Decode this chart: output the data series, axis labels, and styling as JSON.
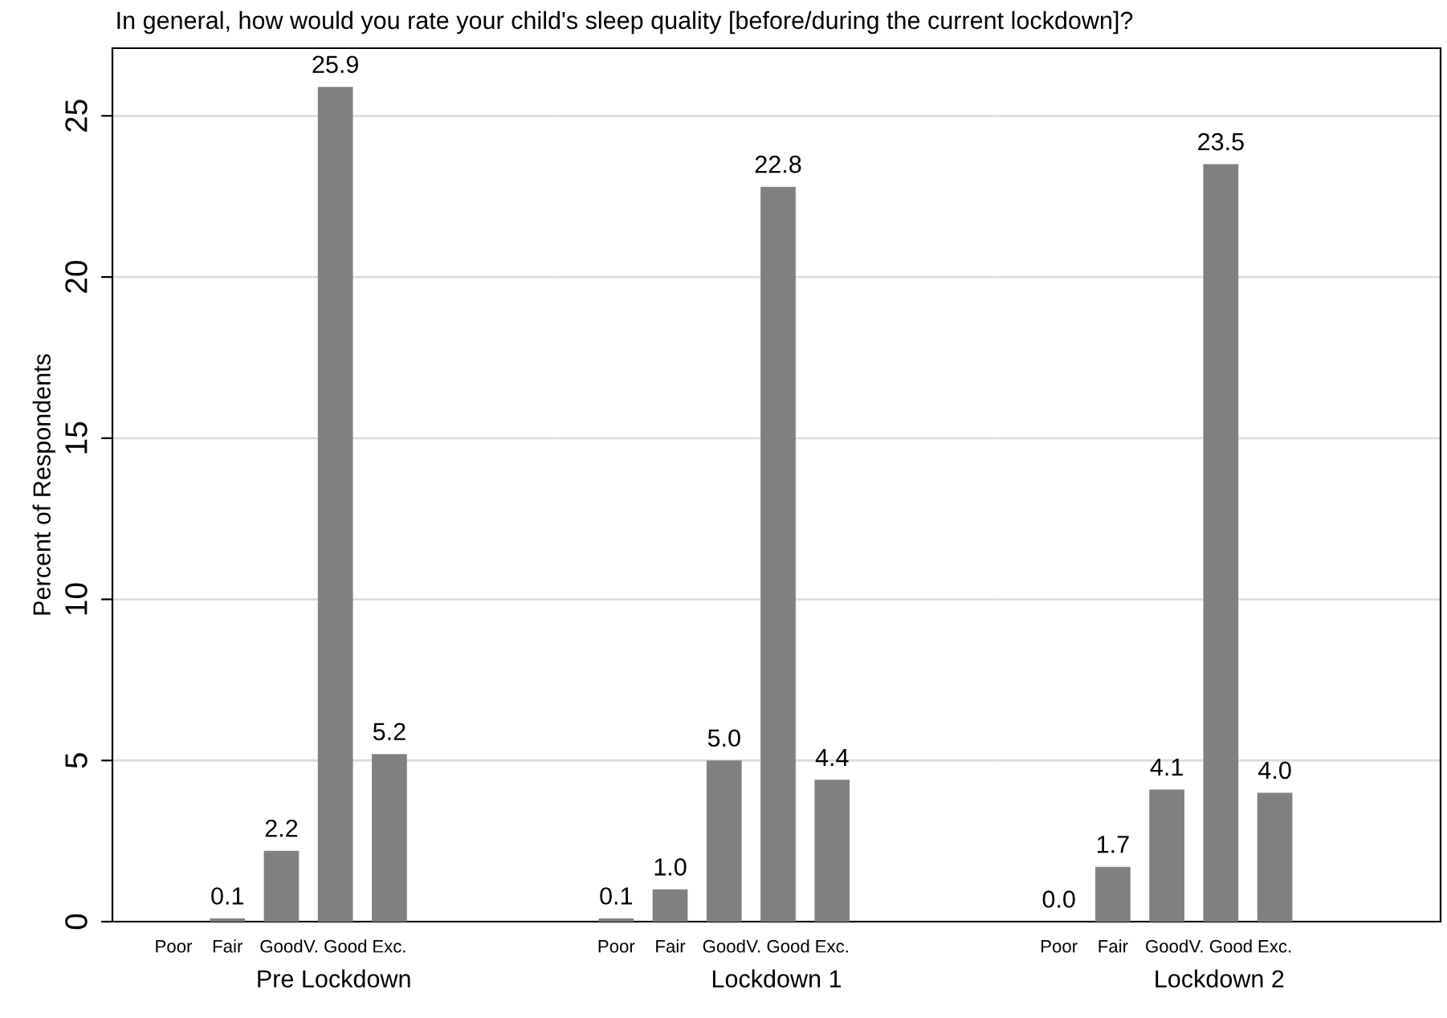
{
  "chart_data": [
    {
      "type": "bar",
      "title": "In general, how would you rate your child's sleep quality [before/during the current lockdown]?",
      "xlabel": "Pre Lockdown",
      "ylabel": "Percent of Respondents",
      "categories": [
        "Poor",
        "Fair",
        "Good",
        "V. Good",
        "Exc."
      ],
      "values": [
        null,
        0.1,
        2.2,
        25.9,
        5.2
      ],
      "value_labels": [
        null,
        "0.1",
        "2.2",
        "25.9",
        "5.2"
      ],
      "color": "#808080",
      "ylim": [
        0,
        27.1
      ],
      "yticks": [
        0,
        5,
        10,
        15,
        20,
        25
      ],
      "grid": "y",
      "tick_labels": true
    },
    {
      "type": "bar",
      "xlabel": "Lockdown 1",
      "categories": [
        "Poor",
        "Fair",
        "Good",
        "V. Good",
        "Exc."
      ],
      "values": [
        0.1,
        1.0,
        5.0,
        22.8,
        4.4
      ],
      "value_labels": [
        "0.1",
        "1.0",
        "5.0",
        "22.8",
        "4.4"
      ],
      "color": "#808080",
      "ylim": [
        0,
        27.1
      ],
      "yticks": [
        0,
        5,
        10,
        15,
        20,
        25
      ],
      "grid": "y",
      "tick_labels": "x"
    },
    {
      "type": "bar",
      "xlabel": "Lockdown 2",
      "categories": [
        "Poor",
        "Fair",
        "Good",
        "V. Good",
        "Exc."
      ],
      "values": [
        0.0,
        1.7,
        4.1,
        23.5,
        4.0
      ],
      "value_labels": [
        "0.0",
        "1.7",
        "4.1",
        "23.5",
        "4.0"
      ],
      "color": "#808080",
      "ylim": [
        0,
        27.1
      ],
      "yticks": [
        0,
        5,
        10,
        15,
        20,
        25
      ],
      "grid": "y",
      "tick_labels": "x"
    }
  ]
}
